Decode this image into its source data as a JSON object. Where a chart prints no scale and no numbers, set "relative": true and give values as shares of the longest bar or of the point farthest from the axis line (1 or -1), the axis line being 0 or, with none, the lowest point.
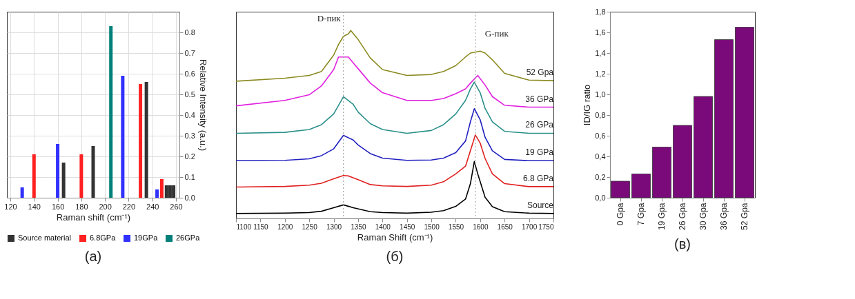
{
  "chart_data": [
    {
      "type": "bar",
      "xlabel": "Raman shift (cm⁻¹)",
      "ylabel": "Relative Intensity (a.u.)",
      "xlim": [
        120,
        260
      ],
      "xticks": [
        120,
        140,
        160,
        180,
        200,
        220,
        240,
        260
      ],
      "ylim": [
        0,
        0.9
      ],
      "yticks": [
        {
          "value": 0,
          "label": "0.0"
        },
        0.1,
        0.2,
        0.3,
        0.4,
        0.5,
        0.6,
        0.7,
        0.8
      ],
      "grid": true,
      "legend": "bottom",
      "annotations": [
        "(a)"
      ],
      "series": [
        {
          "name": "Source material",
          "color": "#333333",
          "x": [
            165,
            190,
            235,
            252,
            255,
            258
          ],
          "values": [
            0.17,
            0.25,
            0.56,
            0.06,
            0.06,
            0.06
          ]
        },
        {
          "name": "6.8GPa",
          "color": "#ff2020",
          "x": [
            140,
            180,
            230,
            248
          ],
          "values": [
            0.21,
            0.21,
            0.55,
            0.09
          ]
        },
        {
          "name": "19GPa",
          "color": "#3030ff",
          "x": [
            130,
            160,
            215,
            244
          ],
          "values": [
            0.05,
            0.26,
            0.59,
            0.04
          ]
        },
        {
          "name": "26GPa",
          "color": "#00807a",
          "x": [
            205
          ],
          "values": [
            0.83
          ]
        }
      ]
    },
    {
      "type": "line",
      "relative": true,
      "xlabel": "Raman Shift (cm⁻¹)",
      "xlim": [
        1100,
        1750
      ],
      "xticks": [
        1100,
        1150,
        1200,
        1250,
        1300,
        1350,
        1400,
        1450,
        1500,
        1550,
        1600,
        1650,
        1700,
        1750
      ],
      "tick_labels": "x",
      "annotations": [
        "(б)"
      ],
      "ref_lines": [
        {
          "axis": "x",
          "value": 1320,
          "label": "D-пик",
          "color": "#999999",
          "line_style": "dotted"
        },
        {
          "axis": "x",
          "value": 1590,
          "label": "G-пик",
          "color": "#999999",
          "line_style": "dotted"
        }
      ],
      "series": [
        {
          "name": "Source",
          "color": "#000000",
          "x": [
            1100,
            1200,
            1250,
            1275,
            1300,
            1320,
            1340,
            1375,
            1400,
            1450,
            1500,
            1525,
            1550,
            1570,
            1580,
            1588,
            1595,
            1610,
            1625,
            1650,
            1700,
            1750
          ],
          "values": [
            0.026,
            0.028,
            0.031,
            0.038,
            0.057,
            0.072,
            0.057,
            0.036,
            0.031,
            0.028,
            0.033,
            0.041,
            0.064,
            0.103,
            0.185,
            0.303,
            0.237,
            0.113,
            0.062,
            0.036,
            0.028,
            0.026
          ]
        },
        {
          "name": "6.8 GPa",
          "color": "#e02020",
          "x": [
            1100,
            1200,
            1250,
            1275,
            1300,
            1320,
            1330,
            1350,
            1375,
            1400,
            1450,
            1500,
            1525,
            1550,
            1570,
            1580,
            1590,
            1600,
            1610,
            1625,
            1650,
            1700,
            1750
          ],
          "values": [
            0.167,
            0.17,
            0.177,
            0.187,
            0.211,
            0.228,
            0.226,
            0.206,
            0.18,
            0.173,
            0.17,
            0.177,
            0.195,
            0.237,
            0.278,
            0.36,
            0.444,
            0.401,
            0.319,
            0.237,
            0.185,
            0.169,
            0.169
          ]
        },
        {
          "name": "19 GPa",
          "color": "#2020c0",
          "x": [
            1100,
            1200,
            1250,
            1275,
            1300,
            1320,
            1340,
            1350,
            1375,
            1400,
            1450,
            1500,
            1525,
            1550,
            1570,
            1580,
            1588,
            1600,
            1610,
            1625,
            1650,
            1700,
            1750
          ],
          "values": [
            0.307,
            0.309,
            0.317,
            0.334,
            0.37,
            0.442,
            0.417,
            0.391,
            0.345,
            0.321,
            0.309,
            0.311,
            0.321,
            0.35,
            0.412,
            0.514,
            0.584,
            0.525,
            0.432,
            0.36,
            0.314,
            0.307,
            0.307
          ]
        },
        {
          "name": "26 GPa",
          "color": "#2a8f8a",
          "x": [
            1100,
            1200,
            1250,
            1275,
            1300,
            1320,
            1340,
            1350,
            1375,
            1400,
            1450,
            1500,
            1525,
            1550,
            1570,
            1580,
            1588,
            1600,
            1610,
            1625,
            1650,
            1700,
            1750
          ],
          "values": [
            0.453,
            0.458,
            0.473,
            0.499,
            0.556,
            0.648,
            0.607,
            0.566,
            0.504,
            0.473,
            0.453,
            0.468,
            0.499,
            0.556,
            0.628,
            0.689,
            0.725,
            0.669,
            0.586,
            0.514,
            0.463,
            0.453,
            0.453
          ]
        },
        {
          "name": "36 GPa",
          "color": "#e020e0",
          "x": [
            1100,
            1200,
            1250,
            1275,
            1300,
            1310,
            1320,
            1330,
            1340,
            1350,
            1375,
            1400,
            1450,
            1500,
            1525,
            1550,
            1570,
            1580,
            1595,
            1610,
            1625,
            1650,
            1700,
            1750
          ],
          "values": [
            0.599,
            0.628,
            0.658,
            0.705,
            0.792,
            0.859,
            0.859,
            0.859,
            0.828,
            0.797,
            0.72,
            0.669,
            0.628,
            0.628,
            0.638,
            0.664,
            0.689,
            0.72,
            0.761,
            0.71,
            0.648,
            0.602,
            0.592,
            0.592
          ]
        },
        {
          "name": "52 Gpa",
          "color": "#8a8a20",
          "x": [
            1100,
            1200,
            1250,
            1275,
            1300,
            1310,
            1320,
            1330,
            1335,
            1350,
            1375,
            1400,
            1450,
            1500,
            1525,
            1550,
            1570,
            1580,
            1600,
            1610,
            1625,
            1650,
            1700,
            1750
          ],
          "values": [
            0.73,
            0.746,
            0.761,
            0.782,
            0.869,
            0.926,
            0.969,
            0.982,
            1.0,
            0.952,
            0.854,
            0.792,
            0.761,
            0.766,
            0.782,
            0.813,
            0.859,
            0.88,
            0.89,
            0.88,
            0.844,
            0.772,
            0.736,
            0.733
          ]
        }
      ]
    },
    {
      "type": "bar",
      "ylabel": "ID/IG ratio",
      "categories": [
        "0 Gpa",
        "7 Gpa",
        "19 Gpa",
        "26 Gpa",
        "30 Gpa",
        "36 Gpa",
        "52 Gpa"
      ],
      "values": [
        0.16,
        0.23,
        0.49,
        0.7,
        0.98,
        1.53,
        1.65
      ],
      "color": "#7a0a7a",
      "ylim": [
        0,
        1.8
      ],
      "yticks": [
        {
          "value": 0,
          "label": "0,0"
        },
        {
          "value": 0.2,
          "label": "0,2"
        },
        {
          "value": 0.4,
          "label": "0,4"
        },
        {
          "value": 0.6,
          "label": "0,6"
        },
        {
          "value": 0.8,
          "label": "0,8"
        },
        {
          "value": 1.0,
          "label": "1,0"
        },
        {
          "value": 1.2,
          "label": "1,2"
        },
        {
          "value": 1.4,
          "label": "1,4"
        },
        {
          "value": 1.6,
          "label": "1,6"
        },
        {
          "value": 1.8,
          "label": "1,8"
        }
      ],
      "annotations": [
        "(в)"
      ]
    }
  ]
}
